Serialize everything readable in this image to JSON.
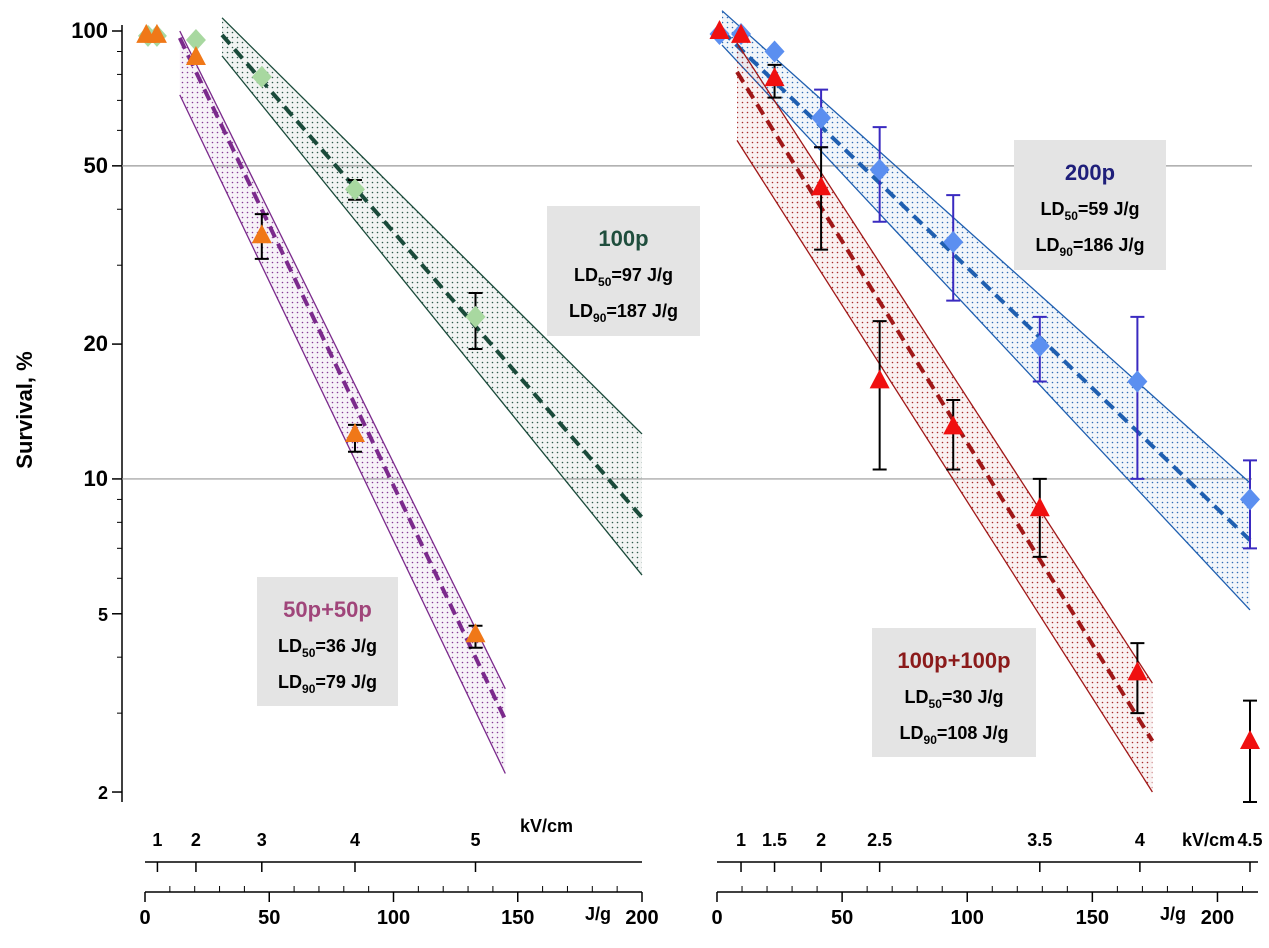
{
  "chart_data": [
    {
      "type": "scatter",
      "ylabel": "Survival, %",
      "log_y": true,
      "ylim": [
        1.9,
        100
      ],
      "yticks": [
        2,
        5,
        10,
        20,
        50,
        100
      ],
      "yminor": [
        3,
        4,
        6,
        7,
        8,
        9,
        30,
        40,
        60,
        70,
        80,
        90
      ],
      "hlines": [
        10,
        50
      ],
      "xlabel": "J/g",
      "xlim": [
        0,
        200
      ],
      "xticks": [
        0,
        50,
        100,
        150,
        200
      ],
      "xminor": [
        10,
        20,
        30,
        40,
        60,
        70,
        80,
        90,
        110,
        120,
        130,
        140,
        160,
        170,
        180,
        190
      ],
      "x2label": "kV/cm",
      "x2ticks": [
        {
          "value": 5,
          "label": "1"
        },
        {
          "value": 20.5,
          "label": "2"
        },
        {
          "value": 47,
          "label": "3"
        },
        {
          "value": 84.5,
          "label": "4"
        },
        {
          "value": 133,
          "label": "5"
        }
      ],
      "series": [
        {
          "color": "#a8d8a0",
          "marker": "diamond",
          "errorbar_color": "#000000",
          "x": [
            1.2,
            4.8,
            20.5,
            47,
            84.5,
            133
          ],
          "values": [
            97.5,
            97.5,
            95.5,
            79,
            44.3,
            23
          ],
          "error_low": [
            null,
            null,
            null,
            null,
            42,
            19.5
          ],
          "error_high": [
            null,
            null,
            null,
            null,
            46.5,
            26
          ]
        },
        {
          "color": "#f07818",
          "marker": "triangle",
          "errorbar_color": "#000000",
          "x": [
            0.5,
            4.8,
            20.5,
            47,
            84.5,
            133
          ],
          "values": [
            98,
            98,
            87.5,
            35,
            12.6,
            4.5
          ],
          "error_low": [
            null,
            null,
            null,
            31,
            11.5,
            4.2
          ],
          "error_high": [
            null,
            null,
            null,
            39,
            13.2,
            4.7
          ]
        }
      ],
      "fits": [
        {
          "color": "#1a4a3a",
          "x": [
            31,
            200
          ],
          "values": [
            98,
            8.2
          ],
          "band_upper": [
            107,
            12.6
          ],
          "band_lower": [
            88,
            6.1
          ]
        },
        {
          "color": "#7b2a8c",
          "x": [
            14,
            145
          ],
          "values": [
            96.5,
            2.9
          ],
          "band_upper": [
            100,
            3.4
          ],
          "band_lower": [
            72,
            2.2
          ]
        }
      ],
      "annotations": [
        {
          "title": "100p",
          "color": "#1f4e3d",
          "lines": [
            {
              "text": "LD",
              "sub": "50",
              "rest": "=97 J/g"
            },
            {
              "text": "LD",
              "sub": "90",
              "rest": "=187 J/g"
            }
          ]
        },
        {
          "title": "50p+50p",
          "color": "#a0457a",
          "lines": [
            {
              "text": "LD",
              "sub": "50",
              "rest": "=36 J/g"
            },
            {
              "text": "LD",
              "sub": "90",
              "rest": "=79 J/g"
            }
          ]
        }
      ]
    },
    {
      "type": "scatter",
      "xlabel": "J/g",
      "xlim": [
        0,
        215
      ],
      "xticks": [
        0,
        50,
        100,
        150,
        200
      ],
      "xminor": [
        10,
        20,
        30,
        40,
        60,
        70,
        80,
        90,
        110,
        120,
        130,
        140,
        160,
        170,
        180,
        190,
        210
      ],
      "x2label": "kV/cm",
      "x2ticks": [
        {
          "value": 9.6,
          "label": "1"
        },
        {
          "value": 23,
          "label": "1.5"
        },
        {
          "value": 41.6,
          "label": "2"
        },
        {
          "value": 65,
          "label": "2.5"
        },
        {
          "value": 129,
          "label": "3.5"
        },
        {
          "value": 169,
          "label": "4"
        },
        {
          "value": 213,
          "label": "4.5"
        }
      ],
      "series": [
        {
          "color": "#5b8ff0",
          "marker": "diamond",
          "errorbar_color": "#3a2ac0",
          "x": [
            1,
            9.6,
            23,
            41.6,
            65,
            94.4,
            129,
            168,
            213
          ],
          "values": [
            98.5,
            98.5,
            90,
            64,
            49,
            33.8,
            19.8,
            16.5,
            9
          ],
          "error_low": [
            null,
            null,
            null,
            55,
            37.5,
            25,
            16.5,
            10,
            7
          ],
          "error_high": [
            null,
            null,
            null,
            74,
            61,
            43,
            23,
            23,
            11
          ]
        },
        {
          "color": "#f01010",
          "marker": "triangle",
          "errorbar_color": "#000000",
          "x": [
            1,
            9.6,
            23,
            41.6,
            65,
            94.4,
            129,
            168,
            213
          ],
          "values": [
            100,
            98,
            78.5,
            44.8,
            16.6,
            13.1,
            8.6,
            3.7,
            2.6
          ],
          "error_low": [
            null,
            null,
            71,
            32.5,
            10.5,
            10.5,
            6.7,
            3,
            1.9
          ],
          "error_high": [
            null,
            null,
            84,
            55,
            22.5,
            15,
            10,
            4.3,
            3.2
          ]
        }
      ],
      "fits": [
        {
          "color": "#1f5fb0",
          "x": [
            2,
            213
          ],
          "values": [
            100,
            7.3
          ],
          "band_upper": [
            111,
            9.8
          ],
          "band_lower": [
            93,
            5.1
          ]
        },
        {
          "color": "#a01818",
          "x": [
            8,
            174
          ],
          "values": [
            81,
            2.6
          ],
          "band_upper": [
            94,
            3.5
          ],
          "band_lower": [
            57,
            2
          ]
        }
      ],
      "annotations": [
        {
          "title": "200p",
          "color": "#1f1f7a",
          "lines": [
            {
              "text": "LD",
              "sub": "50",
              "rest": "=59 J/g"
            },
            {
              "text": "LD",
              "sub": "90",
              "rest": "=186 J/g"
            }
          ]
        },
        {
          "title": "100p+100p",
          "color": "#8b1a1a",
          "lines": [
            {
              "text": "LD",
              "sub": "50",
              "rest": "=30 J/g"
            },
            {
              "text": "LD",
              "sub": "90",
              "rest": "=108 J/g"
            }
          ]
        }
      ]
    }
  ]
}
